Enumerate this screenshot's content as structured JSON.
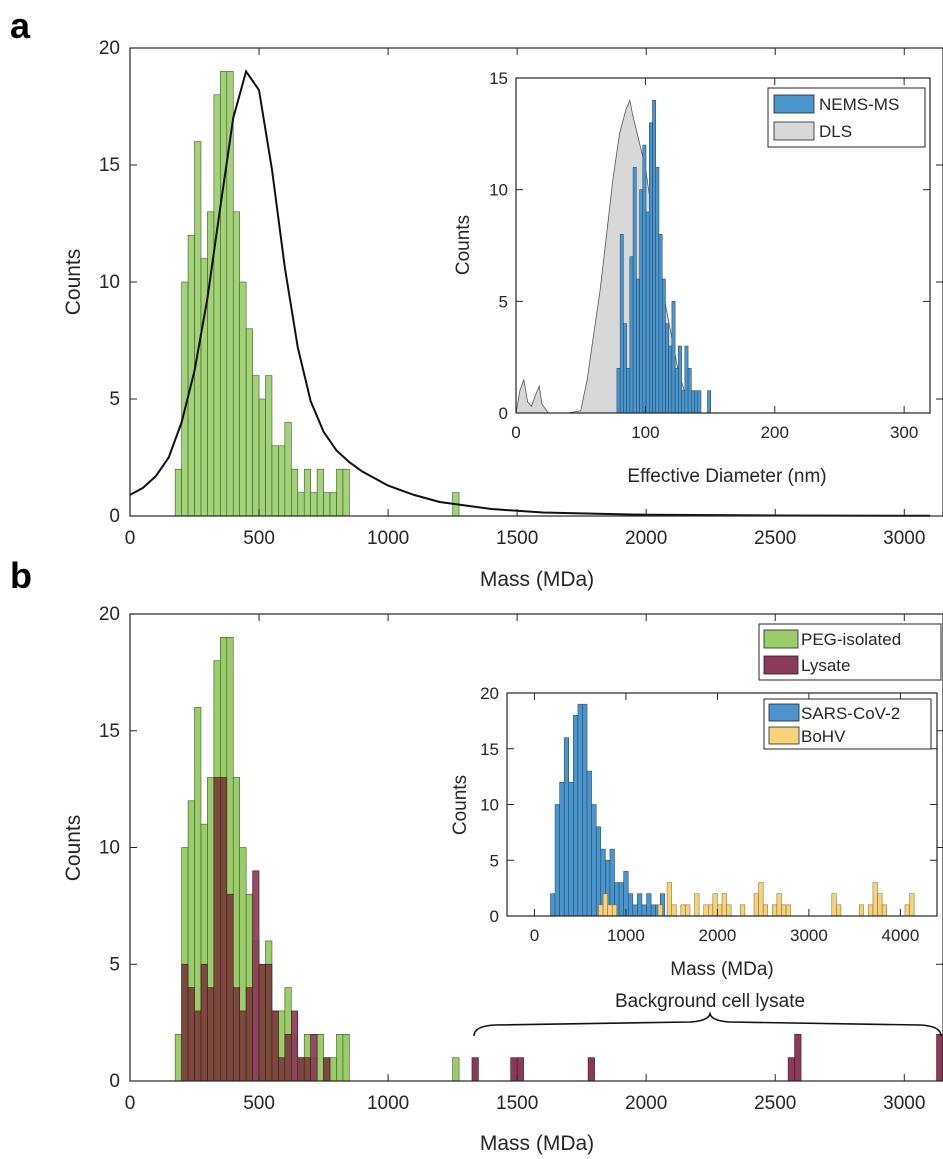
{
  "figure": {
    "panels": [
      {
        "letter": "a",
        "xlabel": "Mass (MDa)",
        "ylabel": "Counts",
        "xticks": [
          "0",
          "500",
          "1000",
          "1500",
          "2000",
          "2500",
          "3000"
        ],
        "yticks": [
          "0",
          "5",
          "10",
          "15",
          "20"
        ],
        "inset": {
          "xlabel": "Effective Diameter (nm)",
          "ylabel": "Counts",
          "xticks": [
            "0",
            "100",
            "200",
            "300"
          ],
          "yticks": [
            "0",
            "5",
            "10",
            "15"
          ],
          "legend": [
            "NEMS-MS",
            "DLS"
          ]
        }
      },
      {
        "letter": "b",
        "xlabel": "Mass (MDa)",
        "ylabel": "Counts",
        "xticks": [
          "0",
          "500",
          "1000",
          "1500",
          "2000",
          "2500",
          "3000"
        ],
        "yticks": [
          "0",
          "5",
          "10",
          "15",
          "20"
        ],
        "legend": [
          "PEG-isolated",
          "Lysate"
        ],
        "annotation": "Background cell lysate",
        "inset": {
          "xlabel": "Mass (MDa)",
          "ylabel": "Counts",
          "xticks": [
            "0",
            "1000",
            "2000",
            "3000",
            "4000"
          ],
          "yticks": [
            "0",
            "5",
            "10",
            "15",
            "20"
          ],
          "legend": [
            "SARS-CoV-2",
            "BoHV"
          ]
        }
      }
    ]
  },
  "colors": {
    "green": "#9acd6a",
    "maroon": "#8b3a5a",
    "overlap": "#7a3e3a",
    "blue": "#4a96cc",
    "yellow": "#f6d27a",
    "gray": "#d8d8d8"
  },
  "chart_data": [
    {
      "type": "bar",
      "subtype": "histogram",
      "panel": "a",
      "bin_width": 25,
      "bin_start": 175,
      "series": [
        {
          "values": [
            2,
            10,
            12,
            16,
            11,
            13,
            18,
            19,
            19,
            13,
            10,
            8,
            6,
            5,
            6,
            3,
            3,
            4,
            2,
            1,
            2,
            1,
            2,
            1,
            1,
            2,
            2,
            0,
            0,
            0,
            0,
            0,
            0,
            0,
            0,
            0,
            0,
            0,
            0,
            0,
            0,
            0,
            0,
            1
          ]
        }
      ],
      "fit_curve": {
        "x": [
          0,
          50,
          100,
          150,
          200,
          250,
          300,
          350,
          400,
          450,
          500,
          550,
          600,
          650,
          700,
          750,
          800,
          850,
          900,
          1000,
          1100,
          1200,
          1400,
          1600,
          2000,
          2500,
          3100
        ],
        "y": [
          0.9,
          1.2,
          1.7,
          2.5,
          4.0,
          6.2,
          9.3,
          13.2,
          17.0,
          19.0,
          18.2,
          14.8,
          10.6,
          7.2,
          4.9,
          3.6,
          2.8,
          2.3,
          1.9,
          1.3,
          0.9,
          0.6,
          0.3,
          0.15,
          0.05,
          0.02,
          0.01
        ]
      },
      "xlim": [
        0,
        3150
      ],
      "ylim": [
        0,
        20
      ]
    },
    {
      "type": "bar",
      "subtype": "histogram",
      "panel": "a-inset",
      "series": [
        {
          "name": "NEMS-MS",
          "bin_start": 78,
          "bin_width": 2.5,
          "values": [
            2,
            8,
            4,
            2,
            7,
            11,
            6,
            10,
            12,
            9,
            13,
            14,
            11,
            8,
            6,
            4,
            3,
            5,
            2,
            3,
            1,
            3,
            2,
            1,
            1,
            1,
            0,
            0,
            1
          ]
        },
        {
          "name": "DLS",
          "curve": true,
          "x": [
            0,
            3,
            6,
            9,
            12,
            15,
            18,
            20,
            25,
            30,
            40,
            50,
            55,
            60,
            65,
            70,
            75,
            80,
            85,
            88,
            90,
            95,
            100,
            105,
            110,
            115,
            120,
            125,
            130,
            135,
            140,
            145
          ],
          "y": [
            0,
            1.0,
            1.5,
            0.5,
            0.3,
            0.8,
            1.2,
            0.4,
            0,
            0,
            0,
            0.1,
            1.5,
            3.5,
            5.5,
            8,
            10.5,
            12.5,
            13.6,
            14,
            13.4,
            12.2,
            11,
            9,
            7,
            5,
            3.5,
            2,
            1,
            0.3,
            0,
            0
          ]
        }
      ],
      "xlim": [
        0,
        320
      ],
      "ylim": [
        0,
        15
      ]
    },
    {
      "type": "bar",
      "subtype": "histogram",
      "panel": "b",
      "bin_width": 25,
      "bin_start": 175,
      "series": [
        {
          "name": "PEG-isolated",
          "values": [
            2,
            10,
            12,
            16,
            11,
            13,
            18,
            19,
            19,
            13,
            10,
            8,
            6,
            5,
            6,
            3,
            3,
            4,
            2,
            1,
            2,
            1,
            2,
            1,
            1,
            2,
            2,
            0,
            0,
            0,
            0,
            0,
            0,
            0,
            0,
            0,
            0,
            0,
            0,
            0,
            0,
            0,
            0,
            1
          ]
        },
        {
          "name": "Lysate",
          "values": [
            0,
            5,
            4,
            3,
            5,
            4,
            13,
            13,
            8,
            4,
            3,
            4,
            9,
            5,
            5,
            3,
            1,
            2,
            3,
            1,
            1,
            2,
            0,
            1,
            0,
            0,
            0,
            0,
            0,
            0,
            0,
            0,
            0,
            0,
            0,
            0,
            0,
            0,
            0,
            0,
            0,
            0,
            0,
            0
          ],
          "extra_bins": [
            {
              "x": 1325,
              "y": 1
            },
            {
              "x": 1475,
              "y": 1
            },
            {
              "x": 1500,
              "y": 1
            },
            {
              "x": 1775,
              "y": 1
            },
            {
              "x": 2550,
              "y": 1
            },
            {
              "x": 2575,
              "y": 2
            },
            {
              "x": 3125,
              "y": 2
            }
          ]
        }
      ],
      "xlim": [
        0,
        3150
      ],
      "ylim": [
        0,
        20
      ]
    },
    {
      "type": "bar",
      "subtype": "histogram",
      "panel": "b-inset",
      "series": [
        {
          "name": "SARS-CoV-2",
          "bin_start": 175,
          "bin_width": 50,
          "values": [
            2,
            10,
            12,
            16,
            12,
            18,
            19,
            19,
            13,
            10,
            8,
            6,
            5,
            6,
            3,
            3,
            4,
            2,
            1,
            2,
            1,
            2,
            1,
            1,
            2
          ]
        },
        {
          "name": "BoHV",
          "bin_start": 150,
          "bin_width": 50,
          "points": [
            [
              700,
              1
            ],
            [
              750,
              2
            ],
            [
              800,
              1
            ],
            [
              850,
              1
            ],
            [
              1350,
              1
            ],
            [
              1450,
              3
            ],
            [
              1500,
              1
            ],
            [
              1600,
              1
            ],
            [
              1650,
              1
            ],
            [
              1750,
              2
            ],
            [
              1850,
              1
            ],
            [
              1900,
              1
            ],
            [
              1950,
              2
            ],
            [
              2000,
              1
            ],
            [
              2050,
              2
            ],
            [
              2100,
              1
            ],
            [
              2250,
              1
            ],
            [
              2400,
              2
            ],
            [
              2450,
              3
            ],
            [
              2500,
              1
            ],
            [
              2600,
              1
            ],
            [
              2650,
              2
            ],
            [
              2700,
              1
            ],
            [
              2750,
              1
            ],
            [
              3250,
              2
            ],
            [
              3300,
              1
            ],
            [
              3550,
              1
            ],
            [
              3650,
              1
            ],
            [
              3700,
              3
            ],
            [
              3750,
              2
            ],
            [
              3800,
              1
            ],
            [
              4050,
              1
            ],
            [
              4100,
              2
            ]
          ]
        }
      ],
      "xlim": [
        -300,
        4400
      ],
      "ylim": [
        0,
        20
      ]
    }
  ]
}
